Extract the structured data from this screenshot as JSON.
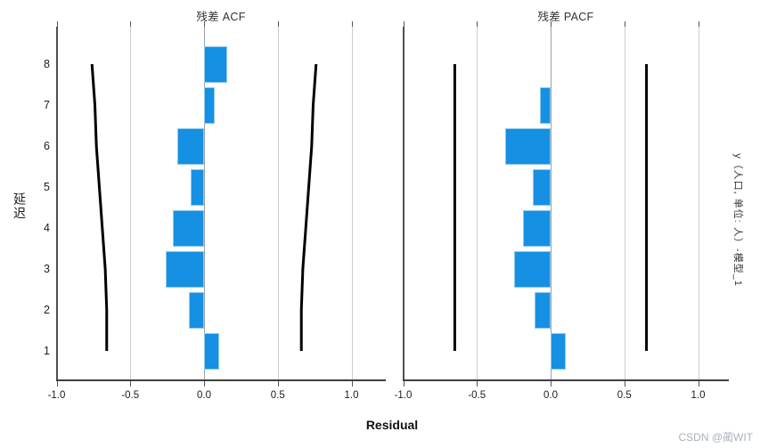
{
  "figure": {
    "y_axis_title": "延迟",
    "x_axis_title": "Residual",
    "right_side_label": "y（人口, 单位: 人）-模型_1",
    "watermark": "CSDN @蔺WIT",
    "bar_color": "#1590e2",
    "confidence_line_color": "#000000",
    "background_color": "#ffffff"
  },
  "chart_data": [
    {
      "type": "bar",
      "orientation": "horizontal",
      "title": "残差 ACF",
      "ylabel": "延迟",
      "xlabel": "Residual",
      "categories": [
        1,
        2,
        3,
        4,
        5,
        6,
        7,
        8
      ],
      "values": [
        0.1,
        -0.1,
        -0.26,
        -0.21,
        -0.09,
        -0.18,
        0.07,
        0.16
      ],
      "confidence_bounds": [
        0.66,
        0.66,
        0.67,
        0.69,
        0.71,
        0.73,
        0.74,
        0.76
      ],
      "confidence_style": "curved",
      "xlim": [
        -1.0,
        1.2
      ],
      "x_ticks": [
        "-1.0",
        "-0.5",
        "0.0",
        "0.5",
        "1.0"
      ],
      "grid": true,
      "legend": "none",
      "bar_color": "#1590e2"
    },
    {
      "type": "bar",
      "orientation": "horizontal",
      "title": "残差 PACF",
      "ylabel": "",
      "xlabel": "Residual",
      "categories": [
        1,
        2,
        3,
        4,
        5,
        6,
        7,
        8
      ],
      "values": [
        0.1,
        -0.11,
        -0.25,
        -0.19,
        -0.12,
        -0.31,
        -0.07,
        0.0
      ],
      "confidence_bounds": [
        0.65,
        0.65,
        0.65,
        0.65,
        0.65,
        0.65,
        0.65,
        0.65
      ],
      "confidence_style": "straight",
      "xlim": [
        -1.0,
        1.2
      ],
      "x_ticks": [
        "-1.0",
        "-0.5",
        "0.0",
        "0.5",
        "1.0"
      ],
      "grid": true,
      "legend": "none",
      "bar_color": "#1590e2"
    }
  ]
}
